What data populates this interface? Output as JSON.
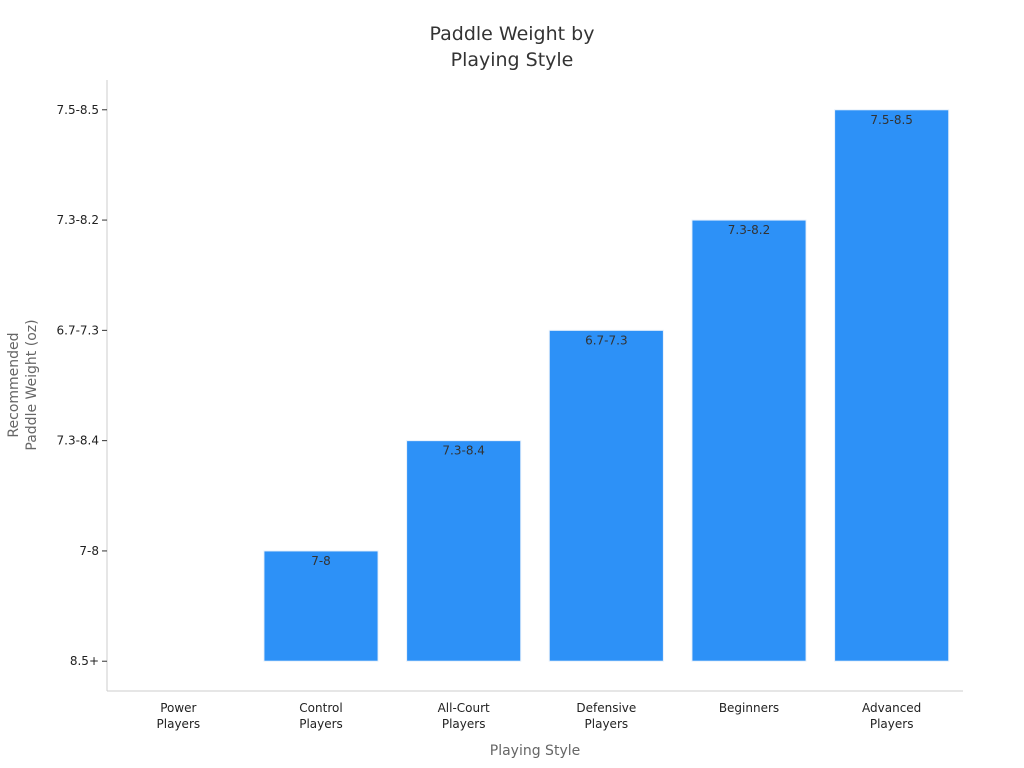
{
  "chart_data": {
    "type": "bar",
    "title": "Paddle Weight by\nPlaying Style",
    "x_label": "Playing Style",
    "y_label": "Recommended\nPaddle Weight (oz)",
    "categories": [
      "Power Players",
      "Control Players",
      "All-Court Players",
      "Defensive Players",
      "Beginners",
      "Advanced Players"
    ],
    "values": [
      0,
      1,
      2,
      3,
      4,
      5
    ],
    "value_labels": [
      null,
      "7-8",
      "7.3-8.4",
      "6.7-7.3",
      "7.3-8.2",
      "7.5-8.5"
    ],
    "color": "#2d91f7",
    "ylim": [
      -0.27,
      5.27
    ],
    "yticks": [
      {
        "value": 0,
        "label": "8.5+"
      },
      {
        "value": 1,
        "label": "7-8"
      },
      {
        "value": 2,
        "label": "7.3-8.4"
      },
      {
        "value": 3,
        "label": "6.7-7.3"
      },
      {
        "value": 4,
        "label": "7.3-8.2"
      },
      {
        "value": 5,
        "label": "7.5-8.5"
      }
    ]
  }
}
